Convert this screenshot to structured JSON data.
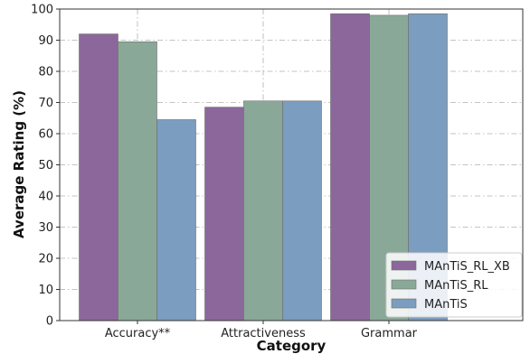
{
  "chart_data": {
    "type": "bar",
    "xlabel": "Category",
    "ylabel": "Average Rating (%)",
    "categories": [
      "Accuracy**",
      "Attractiveness",
      "Grammar"
    ],
    "series": [
      {
        "name": "MAnTiS_RL_XB",
        "values": [
          92,
          68.5,
          98.5
        ],
        "color": "#8c679b"
      },
      {
        "name": "MAnTiS_RL",
        "values": [
          89.5,
          70.5,
          98
        ],
        "color": "#8aa898"
      },
      {
        "name": "MAnTiS",
        "values": [
          64.5,
          70.5,
          98.5
        ],
        "color": "#7b9dbf"
      }
    ],
    "ylim": [
      0,
      100
    ],
    "yticks": [
      0,
      10,
      20,
      30,
      40,
      50,
      60,
      70,
      80,
      90,
      100
    ],
    "grid": true,
    "legend_position": "lower-right"
  }
}
